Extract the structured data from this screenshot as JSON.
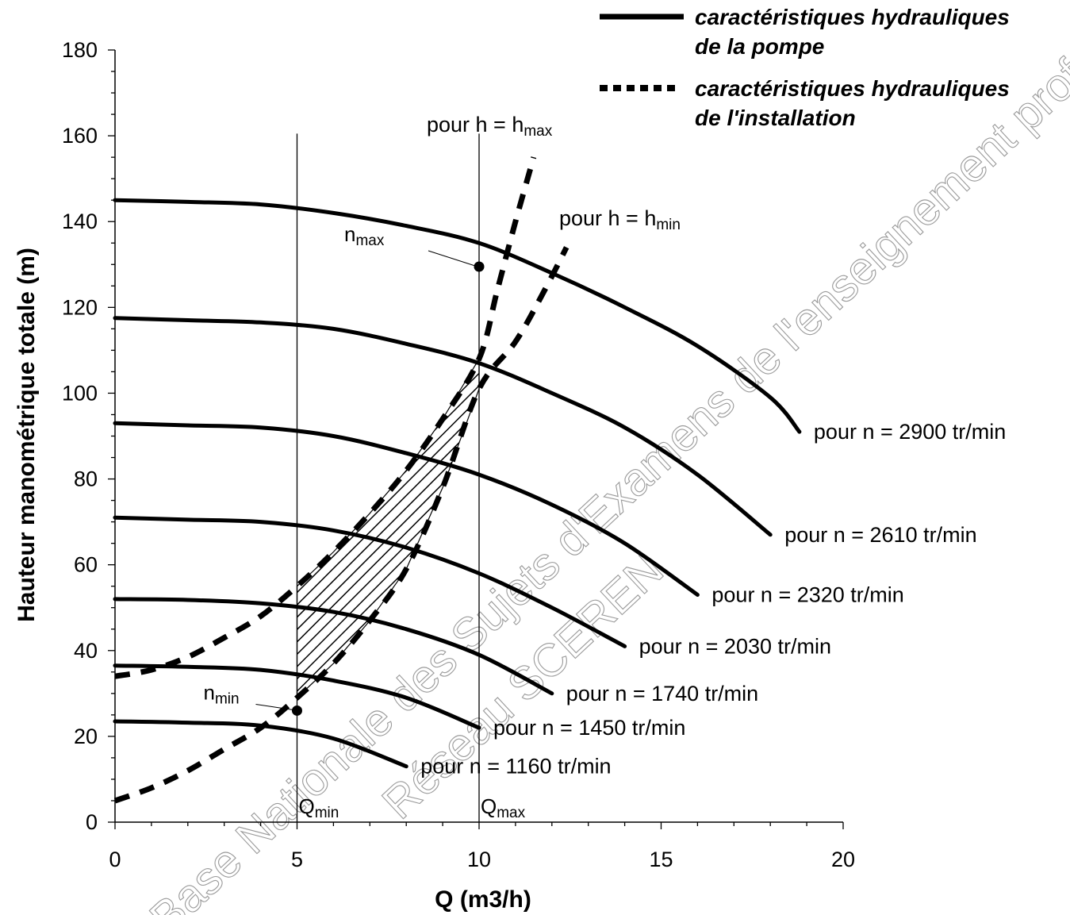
{
  "chart_data": {
    "type": "line",
    "xlabel": "Q (m3/h)",
    "ylabel": "Hauteur manométrique totale (m)",
    "xlim": [
      0,
      20
    ],
    "ylim": [
      0,
      180
    ],
    "xticks": [
      "0",
      "5",
      "10",
      "15",
      "20"
    ],
    "yticks": [
      "0",
      "20",
      "40",
      "60",
      "80",
      "100",
      "120",
      "140",
      "160",
      "180"
    ],
    "grid": false,
    "legend_position": "top-right",
    "legend": [
      {
        "style": "solid",
        "line1": "caractéristiques hydrauliques",
        "line2": "de la pompe"
      },
      {
        "style": "dotted",
        "line1": "caractéristiques hydrauliques",
        "line2": "de l'installation"
      }
    ],
    "pump_curves": [
      {
        "label": "pour n = 2900 tr/min",
        "x": [
          0,
          2,
          4,
          6,
          8,
          10,
          12,
          14,
          16,
          18,
          18.8
        ],
        "y": [
          145,
          144.6,
          144,
          142,
          139,
          135,
          128,
          120,
          111,
          99,
          91
        ]
      },
      {
        "label": "pour n = 2610 tr/min",
        "x": [
          0,
          2,
          4,
          6,
          8,
          10,
          12,
          14,
          16,
          18
        ],
        "y": [
          117.5,
          117,
          116.5,
          115,
          111.5,
          107,
          100,
          92,
          81,
          67
        ]
      },
      {
        "label": "pour n = 2320 tr/min",
        "x": [
          0,
          2,
          4,
          6,
          8,
          10,
          12,
          14,
          16
        ],
        "y": [
          93,
          92.5,
          92,
          90,
          86,
          81,
          74,
          65,
          53
        ]
      },
      {
        "label": "pour n = 2030 tr/min",
        "x": [
          0,
          2,
          4,
          6,
          8,
          10,
          12,
          14
        ],
        "y": [
          71,
          70.5,
          70,
          68,
          64,
          58,
          50,
          41
        ]
      },
      {
        "label": "pour n = 1740 tr/min",
        "x": [
          0,
          2,
          4,
          6,
          8,
          10,
          12
        ],
        "y": [
          52,
          51.8,
          51,
          49,
          45,
          39,
          30
        ]
      },
      {
        "label": "pour n = 1450 tr/min",
        "x": [
          0,
          2,
          4,
          6,
          8,
          10
        ],
        "y": [
          36.5,
          36.2,
          35.5,
          33,
          29,
          22
        ]
      },
      {
        "label": "pour n = 1160 tr/min",
        "x": [
          0,
          2,
          4,
          6,
          8
        ],
        "y": [
          23.5,
          23.2,
          22.5,
          19.5,
          13
        ]
      }
    ],
    "installation_curves": [
      {
        "label": "pour h = hmax",
        "label_main": "pour h = h",
        "label_sub": "max",
        "x": [
          0,
          1,
          2,
          3,
          4,
          5,
          6,
          7,
          8,
          9,
          10,
          10.5,
          11,
          11.5
        ],
        "y": [
          34,
          35.5,
          38.5,
          43,
          48,
          55,
          63,
          72,
          82,
          94,
          108,
          124,
          140,
          155
        ]
      },
      {
        "label": "pour h = hmin",
        "label_main": "pour h = h",
        "label_sub": "min",
        "x": [
          0,
          1,
          2,
          3,
          4,
          5,
          6,
          7,
          8,
          9,
          10,
          11,
          11.8,
          12.4
        ],
        "y": [
          5,
          8,
          12,
          17,
          22,
          29,
          37,
          47,
          59,
          78,
          101,
          112,
          124,
          134
        ]
      }
    ],
    "operating_points": [
      {
        "label": "nmax",
        "label_main": "n",
        "label_sub": "max",
        "x": 10,
        "y": 129.5
      },
      {
        "label": "nmin",
        "label_main": "n",
        "label_sub": "min",
        "x": 5,
        "y": 26
      }
    ],
    "vertical_lines": [
      {
        "label": "Qmin",
        "label_main": "Q",
        "label_sub": "min",
        "x": 5
      },
      {
        "label": "Qmax",
        "label_main": "Q",
        "label_sub": "max",
        "x": 10
      }
    ],
    "hatched_region": {
      "x_from": 5,
      "x_to": 10
    }
  },
  "watermark": {
    "line1": "Base Nationale des Sujets d'Examens de l'enseignement professionnel",
    "line2": "Réseau SCEREN"
  }
}
